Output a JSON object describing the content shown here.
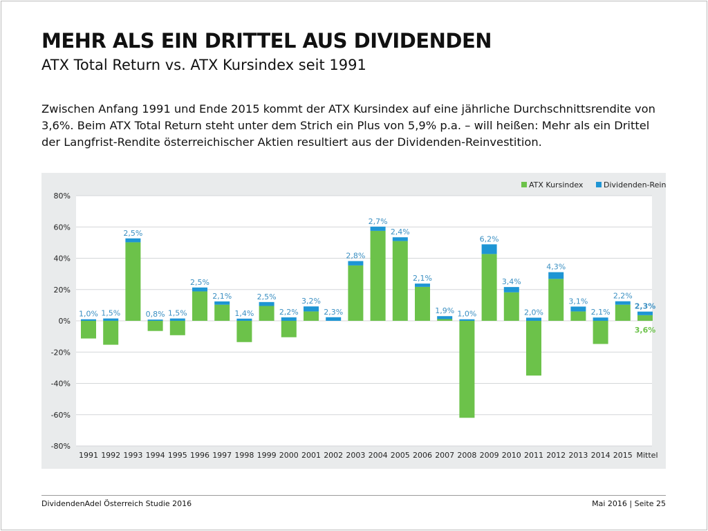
{
  "header": {
    "title": "MEHR ALS EIN DRITTEL AUS DIVIDENDEN",
    "subtitle": "ATX Total Return vs. ATX Kursindex seit 1991"
  },
  "intro": "Zwischen Anfang 1991 und Ende 2015 kommt der ATX Kursindex auf eine jährliche Durchschnittsrendite von 3,6%. Beim ATX Total Return steht unter dem Strich ein Plus von 5,9% p.a. – will heißen: Mehr als ein Drittel der Langfrist-Rendite österreichischer Aktien resultiert aus der Dividenden-Reinvestition.",
  "footer": {
    "left": "DividendenAdel Österreich Studie 2016",
    "right": "Mai 2016 | Seite 25"
  },
  "chart_data": {
    "type": "bar",
    "stacked": true,
    "categories": [
      "1991",
      "1992",
      "1993",
      "1994",
      "1995",
      "1996",
      "1997",
      "1998",
      "1999",
      "2000",
      "2001",
      "2002",
      "2003",
      "2004",
      "2005",
      "2006",
      "2007",
      "2008",
      "2009",
      "2010",
      "2011",
      "2012",
      "2013",
      "2014",
      "2015",
      "Mittel"
    ],
    "series": [
      {
        "name": "ATX Kursindex",
        "color": "#6cc24a",
        "values": [
          -11.3,
          -15.3,
          50.2,
          -6.5,
          -9.2,
          18.8,
          10.3,
          -13.6,
          9.5,
          -10.5,
          6.0,
          0,
          35.4,
          57.5,
          51.0,
          21.7,
          1.1,
          -62.0,
          42.7,
          18.2,
          -35.0,
          26.8,
          6.0,
          -14.8,
          10.3,
          3.6
        ]
      },
      {
        "name": "Dividenden-Reinvestition",
        "color": "#1e95d4",
        "values": [
          1.0,
          1.5,
          2.5,
          0.8,
          1.5,
          2.5,
          2.1,
          1.4,
          2.5,
          2.2,
          3.2,
          2.3,
          2.8,
          2.7,
          2.4,
          2.1,
          1.9,
          1.0,
          6.2,
          3.4,
          2.0,
          4.3,
          3.1,
          2.1,
          2.2,
          2.3
        ]
      }
    ],
    "dividend_labels": [
      "1,0%",
      "1,5%",
      "2,5%",
      "0,8%",
      "1,5%",
      "2,5%",
      "2,1%",
      "1,4%",
      "2,5%",
      "2,2%",
      "3,2%",
      "2,3%",
      "2,8%",
      "2,7%",
      "2,4%",
      "2,1%",
      "1,9%",
      "1,0%",
      "6,2%",
      "3,4%",
      "2,0%",
      "4,3%",
      "3,1%",
      "2,1%",
      "2,2%",
      "2,3%"
    ],
    "mean_kurs_label": "3,6%",
    "yticks": [
      "80%",
      "60%",
      "40%",
      "20%",
      "0%",
      "-20%",
      "-40%",
      "-60%",
      "-80%"
    ],
    "ytick_values": [
      80,
      60,
      40,
      20,
      0,
      -20,
      -40,
      -60,
      -80
    ],
    "ylim": [
      -80,
      80
    ],
    "grid": true,
    "legend": "top-right"
  }
}
